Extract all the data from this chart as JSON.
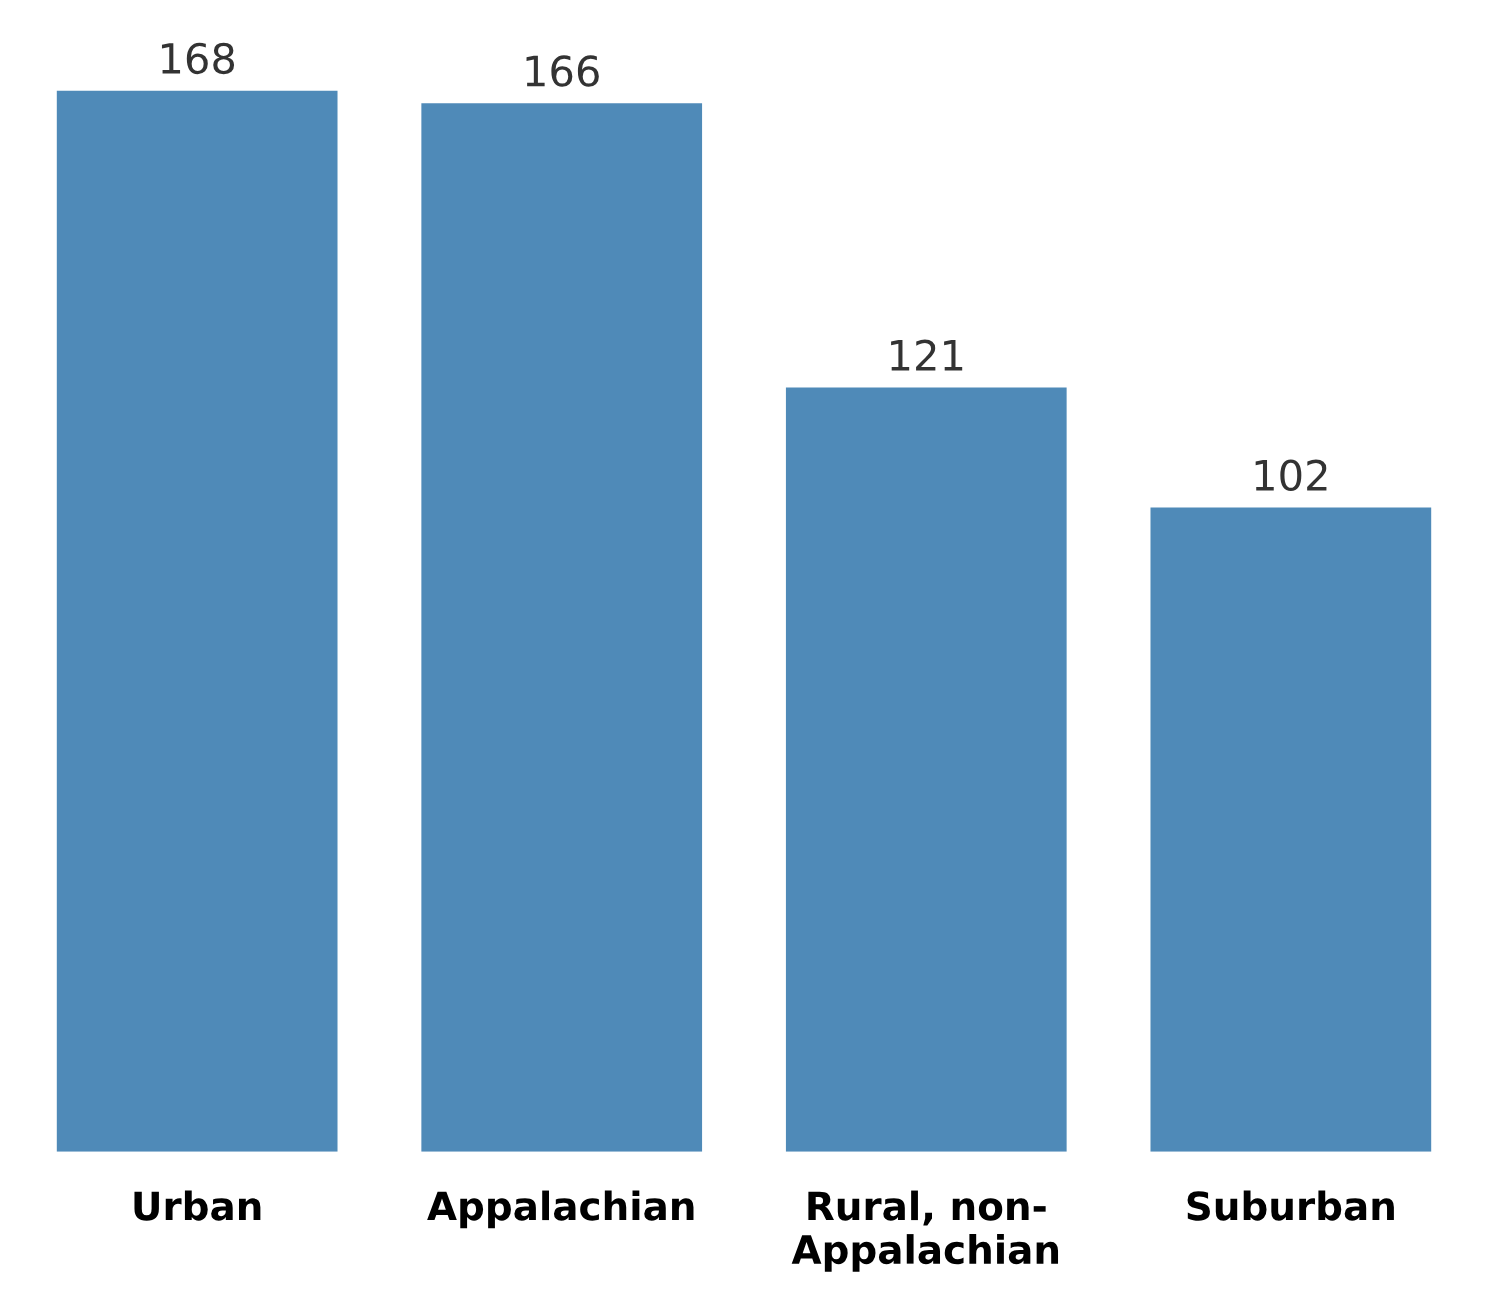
{
  "chart_data": {
    "type": "bar",
    "categories": [
      "Urban",
      "Appalachian",
      "Rural, non-\nAppalachian",
      "Suburban"
    ],
    "values": [
      168,
      166,
      121,
      102
    ],
    "color": "#4f8ab8",
    "data_labels": true,
    "grid": false,
    "legend": false
  }
}
